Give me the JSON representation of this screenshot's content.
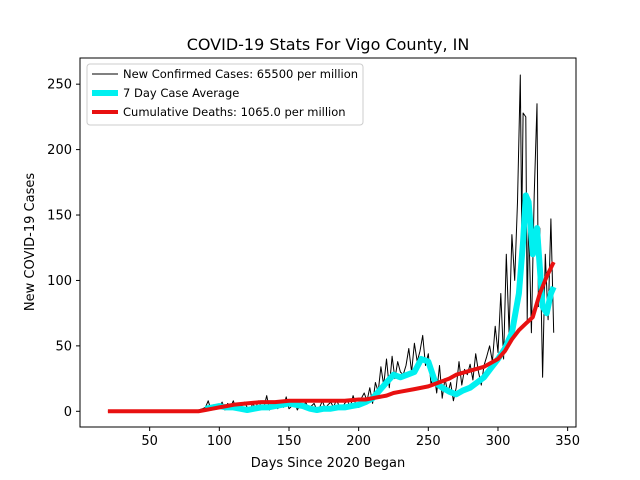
{
  "chart_data": {
    "type": "line",
    "title": "COVID-19 Stats For Vigo County, IN",
    "xlabel": "Days Since 2020 Began",
    "ylabel": "New COVID-19 Cases",
    "xlim": [
      0,
      356
    ],
    "ylim": [
      -12,
      270
    ],
    "xticks": [
      50,
      100,
      150,
      200,
      250,
      300,
      350
    ],
    "yticks": [
      0,
      50,
      100,
      150,
      200,
      250
    ],
    "grid": false,
    "legend_position": "top-left",
    "series": [
      {
        "name": "New Confirmed Cases: 65500 per million",
        "color": "#000000",
        "x": [
          20,
          30,
          40,
          50,
          60,
          70,
          80,
          85,
          88,
          90,
          92,
          94,
          96,
          98,
          100,
          102,
          104,
          106,
          108,
          110,
          112,
          114,
          116,
          118,
          120,
          122,
          124,
          126,
          128,
          130,
          132,
          134,
          136,
          138,
          140,
          142,
          144,
          146,
          148,
          150,
          152,
          154,
          156,
          158,
          160,
          162,
          164,
          166,
          168,
          170,
          172,
          174,
          176,
          178,
          180,
          182,
          184,
          186,
          188,
          190,
          192,
          194,
          196,
          198,
          200,
          202,
          204,
          206,
          208,
          210,
          212,
          214,
          216,
          218,
          220,
          222,
          224,
          226,
          228,
          230,
          232,
          234,
          236,
          238,
          240,
          242,
          244,
          246,
          248,
          250,
          252,
          254,
          256,
          258,
          260,
          262,
          264,
          266,
          268,
          270,
          272,
          274,
          276,
          278,
          280,
          282,
          284,
          286,
          288,
          290,
          292,
          294,
          296,
          298,
          300,
          302,
          304,
          306,
          308,
          310,
          312,
          314,
          316,
          317,
          318,
          320,
          321,
          322,
          324,
          326,
          328,
          329,
          330,
          332,
          334,
          336,
          338,
          340
        ],
        "values": [
          0,
          0,
          0,
          0,
          0,
          0,
          0,
          1,
          2,
          3,
          8,
          1,
          5,
          2,
          3,
          7,
          1,
          6,
          3,
          8,
          2,
          5,
          4,
          7,
          3,
          1,
          6,
          2,
          8,
          4,
          3,
          12,
          1,
          5,
          7,
          2,
          6,
          3,
          11,
          2,
          4,
          8,
          1,
          5,
          3,
          7,
          2,
          4,
          6,
          1,
          3,
          8,
          2,
          5,
          7,
          3,
          9,
          4,
          2,
          6,
          8,
          3,
          12,
          5,
          3,
          10,
          14,
          8,
          18,
          6,
          22,
          15,
          34,
          20,
          40,
          18,
          42,
          25,
          38,
          30,
          28,
          35,
          48,
          30,
          52,
          38,
          46,
          58,
          35,
          44,
          20,
          30,
          14,
          35,
          10,
          25,
          14,
          22,
          8,
          18,
          38,
          20,
          32,
          28,
          36,
          24,
          44,
          30,
          20,
          35,
          42,
          50,
          38,
          65,
          45,
          90,
          40,
          120,
          60,
          135,
          100,
          160,
          257,
          140,
          228,
          225,
          70,
          150,
          60,
          165,
          235,
          80,
          140,
          26,
          120,
          70,
          147,
          60
        ],
        "linewidth": 1
      },
      {
        "name": "7 Day Case Average",
        "color": "#00f0f0",
        "x": [
          90,
          95,
          100,
          105,
          110,
          115,
          120,
          125,
          130,
          135,
          140,
          145,
          150,
          155,
          160,
          165,
          170,
          175,
          180,
          185,
          190,
          195,
          200,
          205,
          210,
          215,
          220,
          225,
          230,
          235,
          240,
          245,
          250,
          255,
          260,
          265,
          270,
          275,
          280,
          285,
          290,
          295,
          300,
          305,
          310,
          315,
          318,
          320,
          322,
          325,
          328,
          330,
          332,
          335,
          338,
          340
        ],
        "values": [
          2,
          3,
          4,
          3,
          3,
          2,
          1,
          2,
          3,
          3,
          4,
          5,
          6,
          5,
          4,
          2,
          1,
          2,
          2,
          3,
          3,
          4,
          5,
          7,
          10,
          16,
          22,
          28,
          26,
          28,
          30,
          40,
          38,
          22,
          18,
          15,
          13,
          16,
          18,
          22,
          26,
          33,
          40,
          48,
          60,
          90,
          130,
          165,
          160,
          120,
          140,
          110,
          80,
          75,
          90,
          95
        ],
        "linewidth": 6
      },
      {
        "name": "Cumulative Deaths: 1065.0 per million",
        "color": "#e81010",
        "x": [
          20,
          40,
          60,
          80,
          85,
          90,
          95,
          100,
          105,
          110,
          120,
          130,
          140,
          150,
          160,
          170,
          180,
          190,
          200,
          205,
          210,
          220,
          225,
          230,
          240,
          250,
          260,
          265,
          270,
          280,
          290,
          295,
          300,
          305,
          310,
          315,
          320,
          325,
          330,
          335,
          340
        ],
        "values": [
          0,
          0,
          0,
          0,
          0,
          1,
          2,
          3,
          4,
          5,
          6,
          7,
          7,
          8,
          8,
          8,
          8,
          8,
          9,
          9,
          10,
          12,
          14,
          15,
          17,
          19,
          23,
          25,
          28,
          31,
          34,
          37,
          40,
          46,
          55,
          62,
          67,
          72,
          90,
          103,
          114
        ],
        "linewidth": 4
      }
    ]
  }
}
